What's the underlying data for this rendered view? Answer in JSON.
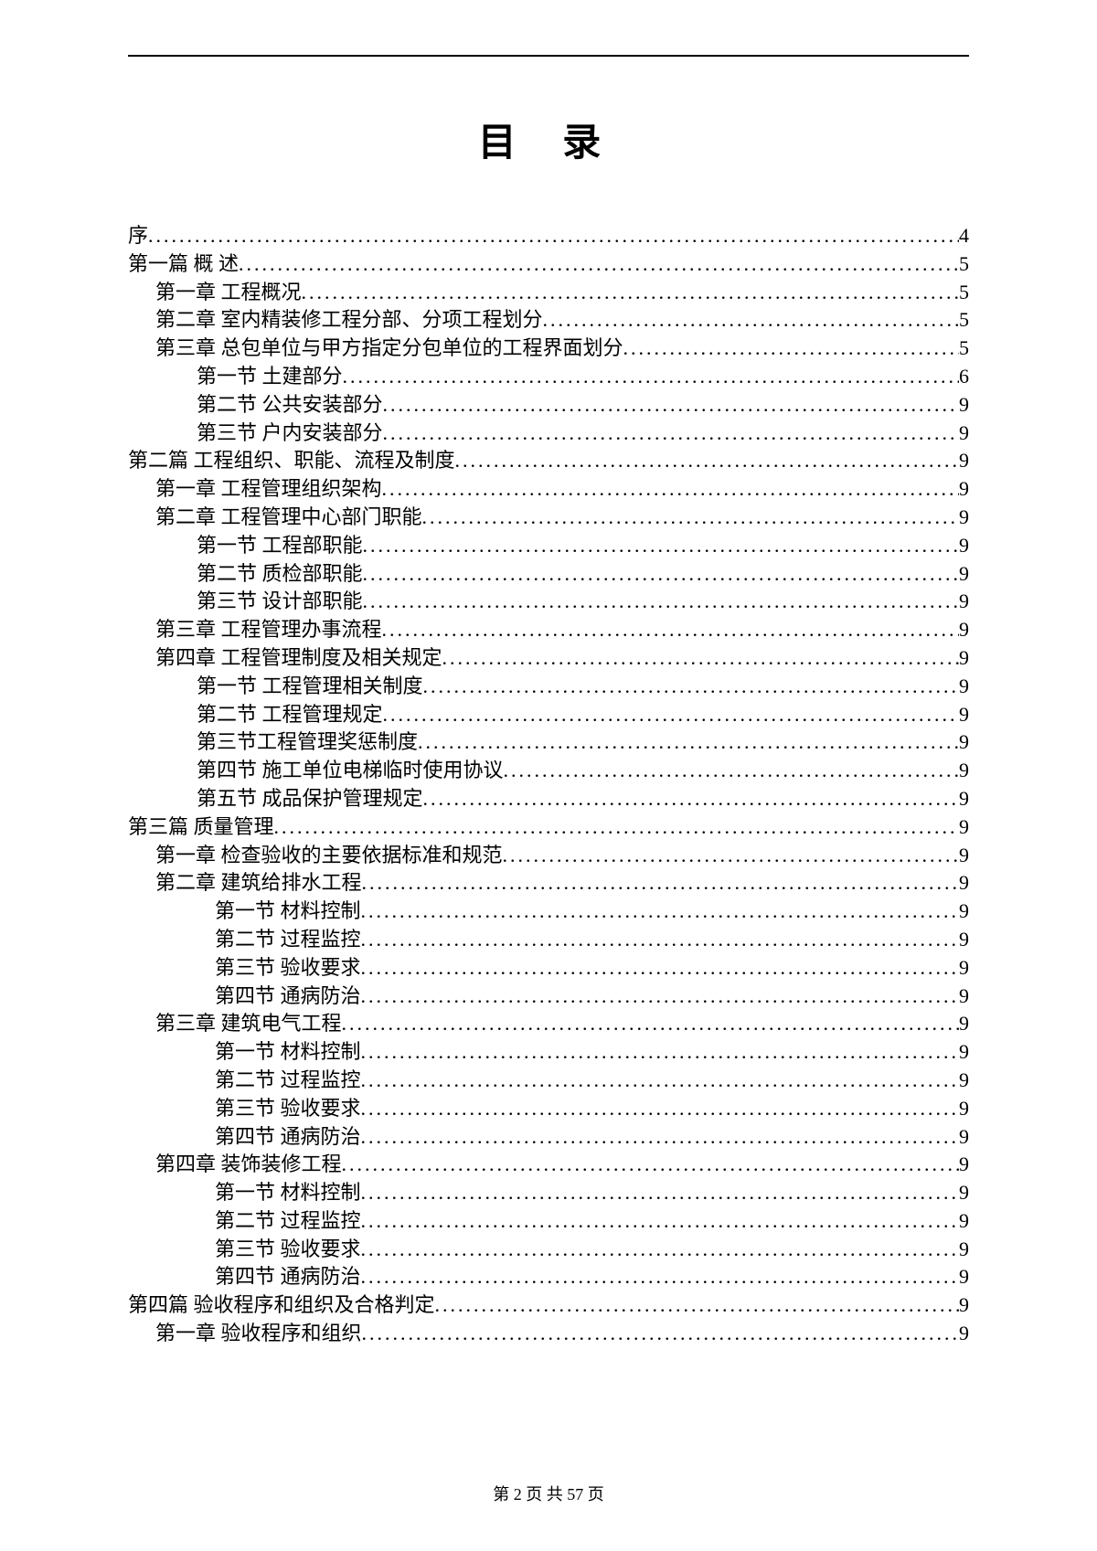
{
  "title": "目 录",
  "footer": "第 2 页 共 57 页",
  "colors": {
    "background": "#ffffff",
    "text": "#000000",
    "border": "#000000"
  },
  "typography": {
    "title_fontsize": 42,
    "body_fontsize": 22,
    "footer_fontsize": 18,
    "font_family": "SimSun"
  },
  "toc": [
    {
      "label": "序",
      "page": "4",
      "indent": 0
    },
    {
      "label": "第一篇   概 述",
      "page": "5",
      "indent": 0
    },
    {
      "label": "第一章 工程概况",
      "page": "5",
      "indent": 1
    },
    {
      "label": "第二章 室内精装修工程分部、分项工程划分",
      "page": "5",
      "indent": 1
    },
    {
      "label": "第三章 总包单位与甲方指定分包单位的工程界面划分",
      "page": "5",
      "indent": 1
    },
    {
      "label": "第一节 土建部分",
      "page": "6",
      "indent": 2
    },
    {
      "label": "第二节 公共安装部分",
      "page": "9",
      "indent": 2
    },
    {
      "label": "第三节 户内安装部分",
      "page": "9",
      "indent": 2
    },
    {
      "label": "第二篇   工程组织、职能、流程及制度",
      "page": "9",
      "indent": 0
    },
    {
      "label": "第一章 工程管理组织架构",
      "page": "9",
      "indent": 1
    },
    {
      "label": "第二章 工程管理中心部门职能",
      "page": "9",
      "indent": 1
    },
    {
      "label": "第一节 工程部职能",
      "page": "9",
      "indent": 2
    },
    {
      "label": "第二节 质检部职能",
      "page": "9",
      "indent": 2
    },
    {
      "label": "第三节 设计部职能",
      "page": "9",
      "indent": 2
    },
    {
      "label": "第三章 工程管理办事流程",
      "page": "9",
      "indent": 1
    },
    {
      "label": "第四章 工程管理制度及相关规定",
      "page": "9",
      "indent": 1
    },
    {
      "label": "第一节 工程管理相关制度",
      "page": "9",
      "indent": 2
    },
    {
      "label": "第二节 工程管理规定",
      "page": "9",
      "indent": 2
    },
    {
      "label": "第三节工程管理奖惩制度",
      "page": "9",
      "indent": 2
    },
    {
      "label": "第四节 施工单位电梯临时使用协议",
      "page": "9",
      "indent": 2
    },
    {
      "label": "第五节 成品保护管理规定",
      "page": "9",
      "indent": 2
    },
    {
      "label": "第三篇   质量管理",
      "page": "9",
      "indent": 0
    },
    {
      "label": "第一章   检查验收的主要依据标准和规范",
      "page": "9",
      "indent": 1
    },
    {
      "label": "第二章   建筑给排水工程",
      "page": "9",
      "indent": 1
    },
    {
      "label": "第一节   材料控制",
      "page": "9",
      "indent": 3
    },
    {
      "label": "第二节   过程监控",
      "page": "9",
      "indent": 3
    },
    {
      "label": "第三节   验收要求",
      "page": "9",
      "indent": 3
    },
    {
      "label": "第四节   通病防治",
      "page": "9",
      "indent": 3
    },
    {
      "label": "第三章 建筑电气工程",
      "page": "9",
      "indent": 1
    },
    {
      "label": "第一节   材料控制",
      "page": "9",
      "indent": 3
    },
    {
      "label": "第二节   过程监控",
      "page": "9",
      "indent": 3
    },
    {
      "label": "第三节   验收要求",
      "page": "9",
      "indent": 3
    },
    {
      "label": "第四节   通病防治",
      "page": "9",
      "indent": 3
    },
    {
      "label": "第四章   装饰装修工程",
      "page": "9",
      "indent": 1
    },
    {
      "label": "第一节   材料控制",
      "page": "9",
      "indent": 3
    },
    {
      "label": "第二节   过程监控",
      "page": "9",
      "indent": 3
    },
    {
      "label": "第三节   验收要求",
      "page": "9",
      "indent": 3
    },
    {
      "label": "第四节   通病防治",
      "page": "9",
      "indent": 3
    },
    {
      "label": "第四篇   验收程序和组织及合格判定",
      "page": "9",
      "indent": 0
    },
    {
      "label": "第一章   验收程序和组织",
      "page": "9",
      "indent": 1
    }
  ]
}
